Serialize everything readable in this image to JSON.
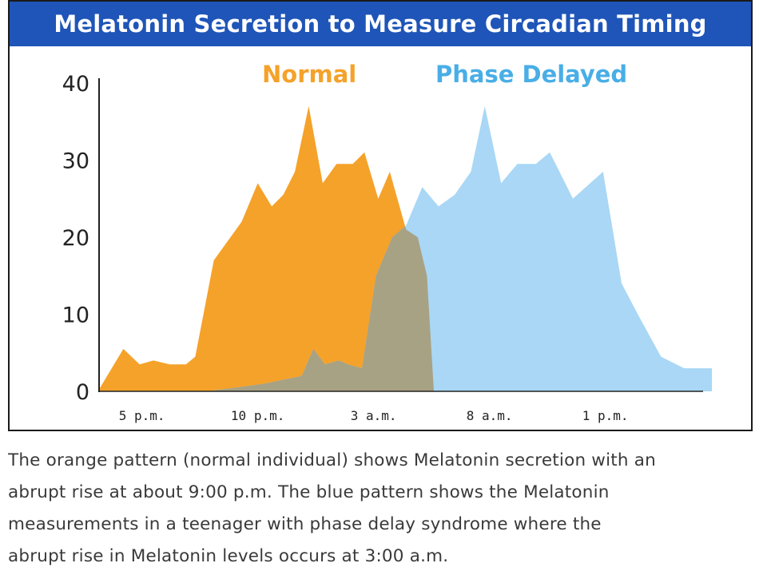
{
  "chart_data": {
    "type": "area",
    "title": "Melatonin Secretion to Measure Circadian Timing",
    "xlabel": "",
    "ylabel": "",
    "ylim": [
      0,
      40
    ],
    "yticks": [
      "0",
      "10",
      "20",
      "30",
      "40"
    ],
    "x_tick_labels": [
      "5 p.m.",
      "10 p.m.",
      "3 a.m.",
      "8 a.m.",
      "1 p.m."
    ],
    "x_tick_hours": [
      17,
      22,
      27,
      32,
      37
    ],
    "grid": false,
    "legend_position": "top",
    "series": [
      {
        "name": "Normal",
        "color": "#f5a22a",
        "x": [
          15.1,
          16.2,
          16.9,
          17.5,
          18.2,
          18.9,
          19.3,
          20.1,
          21.3,
          22.0,
          22.6,
          23.1,
          23.6,
          24.2,
          24.8,
          25.4,
          26.1,
          26.6,
          27.2,
          27.7,
          28.4,
          28.9,
          29.3,
          29.6
        ],
        "values": [
          0,
          5.5,
          3.5,
          4,
          3.5,
          3.5,
          4.5,
          17,
          22,
          27,
          24,
          25.5,
          28.5,
          37,
          27,
          29.5,
          29.5,
          31,
          25,
          28.5,
          21,
          20,
          15,
          0
        ]
      },
      {
        "name": "Phase Delayed",
        "color": "#a9d7f5",
        "x": [
          19.8,
          21.1,
          22.3,
          23.1,
          23.9,
          24.4,
          24.9,
          25.5,
          25.9,
          26.5,
          27.1,
          27.8,
          28.4,
          29.1,
          29.8,
          30.5,
          31.2,
          31.8,
          32.5,
          33.2,
          34.0,
          34.6,
          35.6,
          36.9,
          37.7,
          38.4,
          39.4,
          40.4,
          41.6
        ],
        "values": [
          0,
          0.5,
          1,
          1.5,
          2,
          5.5,
          3.5,
          4,
          3.5,
          3,
          15,
          20,
          21.5,
          26.5,
          24,
          25.5,
          28.5,
          37,
          27,
          29.5,
          29.5,
          31,
          25,
          28.5,
          14,
          10,
          4.5,
          3,
          3
        ]
      }
    ]
  },
  "caption": {
    "line1": "The orange pattern (normal individual) shows Melatonin secretion with an",
    "line2": "abrupt rise at about 9:00 p.m.  The blue pattern shows the Melatonin",
    "line3": "measurements in a teenager with phase delay syndrome where the",
    "line4": "abrupt rise in Melatonin levels occurs at 3:00 a.m."
  }
}
